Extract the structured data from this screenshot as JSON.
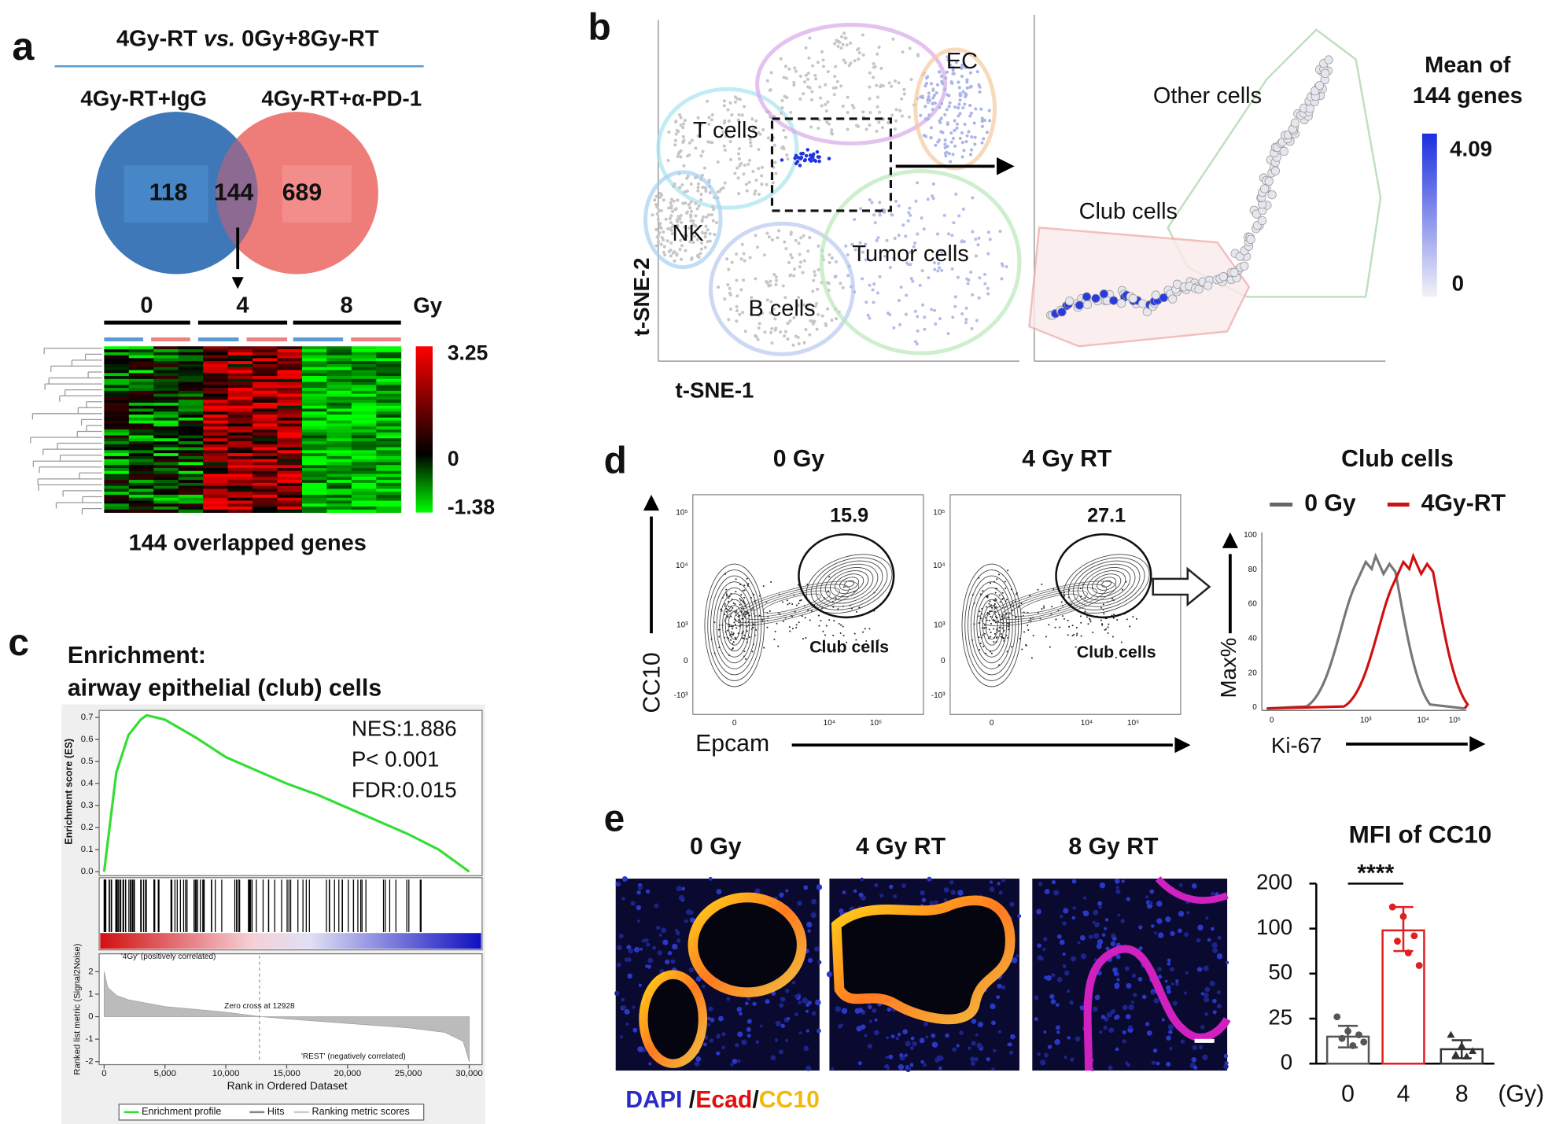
{
  "figure": {
    "a": {
      "label": "a",
      "title": {
        "left": "4Gy-RT ",
        "italic": "vs.",
        "right": " 0Gy+8Gy-RT"
      },
      "venn": {
        "left_name": "4Gy-RT+IgG",
        "right_name": "4Gy-RT+α-PD-1",
        "left_only": "118",
        "overlap": "144",
        "right_only": "689"
      },
      "heatmap": {
        "doses": [
          "0",
          "4",
          "8"
        ],
        "unit": "Gy",
        "scale_labels": [
          "3.25",
          "0",
          "-1.38"
        ],
        "caption": "144 overlapped genes"
      }
    },
    "b": {
      "label": "b",
      "clusters": [
        "T cells",
        "EC",
        "NK",
        "Tumor cells",
        "B cells"
      ],
      "x_axis": "t-SNE-1",
      "y_axis": "t-SNE-2",
      "zoom": [
        "Other cells",
        "Club cells"
      ],
      "legend_title": [
        "Mean of",
        "144 genes"
      ],
      "legend_labels": [
        "4.09",
        "0"
      ]
    },
    "c": {
      "label": "c"
    },
    "d": {
      "label": "d",
      "plots": [
        {
          "title": "0 Gy",
          "percent": "15.9",
          "gate": "Club cells"
        },
        {
          "title": "4 Gy RT",
          "percent": "27.1",
          "gate": "Club cells"
        }
      ],
      "flow_y_ticks": [
        "10⁵",
        "10⁴",
        "10³",
        "0",
        "-10³"
      ],
      "flow_x_ticks": [
        "0",
        "10⁴",
        "10⁵"
      ],
      "y_axis": "CC10",
      "x_axis": "Epcam",
      "histogram": {
        "title": "Club cells",
        "legend": [
          "0 Gy",
          "4Gy-RT"
        ],
        "y_axis": "Max%",
        "x_axis": "Ki-67",
        "y_ticks": [
          "100",
          "80",
          "60",
          "40",
          "20",
          "0"
        ],
        "x_ticks": [
          "0",
          "10³",
          "10⁴",
          "10⁵"
        ]
      }
    },
    "e": {
      "label": "e",
      "images": [
        "0 Gy",
        "4 Gy RT",
        "8 Gy RT"
      ],
      "stain": [
        "DAPI",
        " /",
        "Ecad",
        "/",
        "CC10"
      ]
    }
  },
  "chart_data": [
    {
      "type": "line",
      "title": "Enrichment:",
      "subtitle": "airway epithelial (club) cells",
      "y_label": "Enrichment score (ES)",
      "x": [
        0,
        1000,
        2000,
        3000,
        3500,
        5000,
        7500,
        10000,
        12500,
        15000,
        17500,
        20000,
        22500,
        25000,
        27500,
        30000
      ],
      "series": [
        {
          "name": "Enrichment profile",
          "color": "#33dd33",
          "values": [
            0,
            0.45,
            0.62,
            0.69,
            0.71,
            0.69,
            0.61,
            0.52,
            0.46,
            0.4,
            0.35,
            0.29,
            0.23,
            0.17,
            0.1,
            0
          ]
        }
      ],
      "xlim": [
        0,
        30000
      ],
      "ylim": [
        0,
        0.75
      ],
      "yticks": [
        {
          "value": 0,
          "label": "0.0"
        },
        0.1,
        0.2,
        0.3,
        0.4,
        0.5,
        0.6,
        0.7
      ],
      "annotations": [
        "NES:1.886",
        "P< 0.001",
        "FDR:0.015"
      ]
    },
    {
      "type": "area",
      "y_label": "Ranked list metric (Signal2Noise)",
      "x_label": "Rank in Ordered Dataset",
      "x": [
        0,
        300,
        1000,
        2000,
        5000,
        8000,
        10000,
        12928,
        15000,
        20000,
        25000,
        28000,
        29500,
        30000
      ],
      "series": [
        {
          "name": "Ranking metric scores",
          "color": "#bbbbbb",
          "values": [
            2.0,
            1.3,
            0.95,
            0.75,
            0.45,
            0.3,
            0.2,
            0,
            -0.1,
            -0.3,
            -0.5,
            -0.7,
            -1.1,
            -2.0
          ]
        }
      ],
      "hits_label": "Hits",
      "xlim": [
        0,
        30000
      ],
      "ylim": [
        -2,
        2.2
      ],
      "xticks": [
        0,
        {
          "value": 5000,
          "label": "5,000"
        },
        {
          "value": 10000,
          "label": "10,000"
        },
        {
          "value": 15000,
          "label": "15,000"
        },
        {
          "value": 20000,
          "label": "20,000"
        },
        {
          "value": 25000,
          "label": "25,000"
        },
        {
          "value": 30000,
          "label": "30,000"
        }
      ],
      "yticks": [
        -2,
        -1,
        0,
        1,
        2
      ],
      "annotations": [
        "'4Gy' (positively correlated)",
        "Zero cross at 12928",
        "'REST' (negatively correlated)"
      ]
    },
    {
      "type": "bar",
      "title": "MFI of CC10",
      "categories": [
        "0",
        "4",
        "8"
      ],
      "x_unit": "(Gy)",
      "values": [
        15,
        98,
        8
      ],
      "error_low": [
        9,
        75,
        3
      ],
      "error_high": [
        21,
        148,
        13
      ],
      "points": [
        [
          26,
          18,
          16,
          14,
          10,
          12
        ],
        [
          148,
          127,
          92,
          86,
          73,
          59
        ],
        [
          16,
          10,
          7,
          5,
          4
        ]
      ],
      "colors": [
        "#555555",
        "#e02020",
        "#333333"
      ],
      "markers": [
        "circle",
        "circle",
        "triangle"
      ],
      "ylim": [
        0,
        200
      ],
      "yticks": [
        0,
        25,
        50,
        100,
        200
      ],
      "scale": "piecewise",
      "significance": {
        "label": "****",
        "between": [
          0,
          1
        ]
      }
    }
  ]
}
